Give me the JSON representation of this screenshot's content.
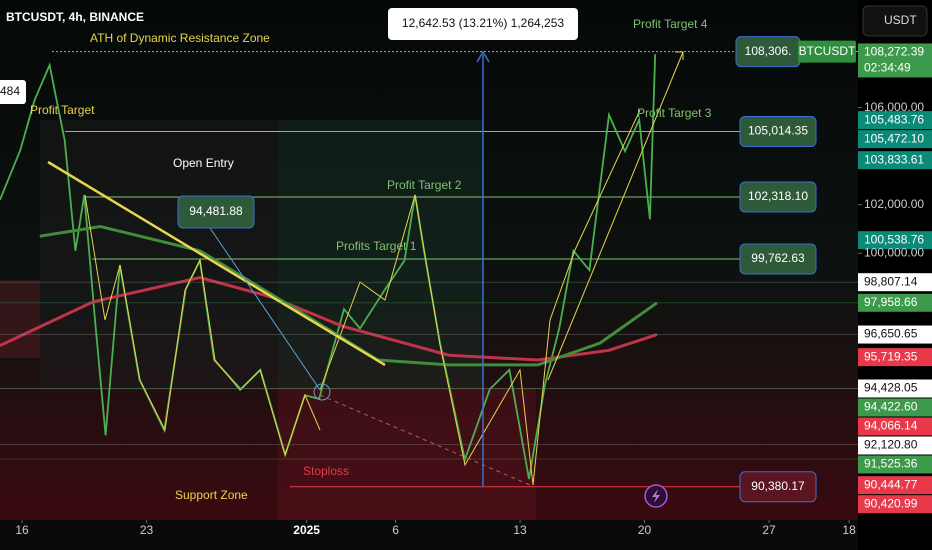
{
  "chart_data": {
    "type": "line",
    "title": "BTCUSDT, 4h, BINANCE",
    "currency": "USDT",
    "symbol": "BTCUSDT",
    "countdown": "02:34:49",
    "xlim": [
      -1.24,
      47
    ],
    "ylim": [
      89010,
      110433
    ],
    "xticks": [
      {
        "value": 0,
        "label": "16"
      },
      {
        "value": 7,
        "label": "23"
      },
      {
        "value": 16,
        "label": "2025"
      },
      {
        "value": 21,
        "label": "6"
      },
      {
        "value": 28,
        "label": "13"
      },
      {
        "value": 35,
        "label": "20"
      },
      {
        "value": 42,
        "label": "27"
      },
      {
        "value": 46.5,
        "label": "18"
      }
    ],
    "yticks": [
      {
        "value": 106000,
        "label": "106,000.00"
      },
      {
        "value": 102000,
        "label": "102,000.00"
      },
      {
        "value": 100000,
        "label": "100,000.00"
      }
    ],
    "grid": false,
    "series": [
      {
        "color": "#4caf50",
        "x": [
          -1.24,
          -0.1,
          0.7,
          1.55,
          2.4,
          3,
          3.5,
          4.1,
          4.7,
          5.5,
          6.6,
          8,
          9.2,
          10,
          10.8,
          12.3,
          13.4,
          14.8,
          15.9,
          16.7,
          18.1,
          19,
          20.4,
          21.5,
          22.1,
          22.6,
          23.5,
          24.9,
          26.3,
          27.4,
          28.5,
          29.4,
          30.2,
          31,
          31.9,
          33,
          33.9,
          34.7,
          35.3,
          35.6
        ],
        "values": [
          102200,
          104250,
          106300,
          107750,
          104650,
          100100,
          102400,
          97250,
          92500,
          99500,
          94800,
          92700,
          98500,
          99700,
          95600,
          94400,
          95200,
          91700,
          94150,
          94000,
          97700,
          96900,
          98500,
          99700,
          102400,
          100100,
          96300,
          91500,
          94400,
          95200,
          90700,
          94600,
          96900,
          100100,
          99300,
          105700,
          104200,
          105500,
          101400,
          108200
        ]
      },
      {
        "color": "#c2334a",
        "x": [
          -1.24,
          4,
          10,
          14,
          18,
          24,
          29,
          33,
          35.7
        ],
        "values": [
          96200,
          98000,
          99000,
          98200,
          97000,
          95800,
          95600,
          96000,
          96650
        ]
      },
      {
        "color": "#3f8f3a",
        "x": [
          1,
          4.4,
          10,
          15.6,
          20,
          24,
          29,
          32.5,
          35.7
        ],
        "values": [
          100700,
          101100,
          100100,
          97600,
          95600,
          95400,
          95400,
          96300,
          97960
        ]
      }
    ],
    "levels": [
      {
        "value": 108306,
        "label": "108,306."
      },
      {
        "value": 105014.35,
        "label": "105,014.35"
      },
      {
        "value": 102318.1,
        "label": "102,318.10"
      },
      {
        "value": 99762.63,
        "label": "99,762.63"
      },
      {
        "value": 90380.17,
        "label": "90,380.17"
      }
    ],
    "price_labels": [
      {
        "value": 108272.39,
        "label": "108,272.39",
        "color": "#3d9a4d"
      },
      {
        "value": 105483.76,
        "label": "105,483.76",
        "color": "#0b8a78"
      },
      {
        "value": 105472.1,
        "label": "105,472.10",
        "color": "#0b8a78"
      },
      {
        "value": 103833.61,
        "label": "103,833.61",
        "color": "#0b8a78"
      },
      {
        "value": 100538.76,
        "label": "100,538.76",
        "color": "#0b8a78"
      },
      {
        "value": 98807.14,
        "label": "98,807.14",
        "color": "#ffffff"
      },
      {
        "value": 97958.66,
        "label": "97,958.66",
        "color": "#3d9a4d"
      },
      {
        "value": 96650.65,
        "label": "96,650.65",
        "color": "#ffffff"
      },
      {
        "value": 95719.35,
        "label": "95,719.35",
        "color": "#e8394a"
      },
      {
        "value": 94428.05,
        "label": "94,428.05",
        "color": "#ffffff"
      },
      {
        "value": 94422.6,
        "label": "94,422.60",
        "color": "#3d9a4d"
      },
      {
        "value": 94066.14,
        "label": "94,066.14",
        "color": "#e8394a"
      },
      {
        "value": 92120.8,
        "label": "92,120.80",
        "color": "#ffffff"
      },
      {
        "value": 91525.36,
        "label": "91,525.36",
        "color": "#3d9a4d"
      },
      {
        "value": 90444.77,
        "label": "90,444.77",
        "color": "#e8394a"
      },
      {
        "value": 90420.99,
        "label": "90,420.99",
        "color": "#e8394a"
      }
    ],
    "annotations": {
      "ath": "ATH of Dynamic Resistance Zone",
      "profit_target": "Profit Target",
      "open_entry": "Open Entry",
      "entry_price": "94,481.88",
      "profit_target_1": "Profits Target 1",
      "profit_target_2": "Profit Target 2",
      "profit_target_3": "Profit Target 3",
      "profit_target_4": "Profit Target 4",
      "stoploss": "Stoploss",
      "support_zone": "Support Zone",
      "measure": "12,642.53 (13.21%) 1,264,253",
      "left_cut": "484"
    }
  }
}
